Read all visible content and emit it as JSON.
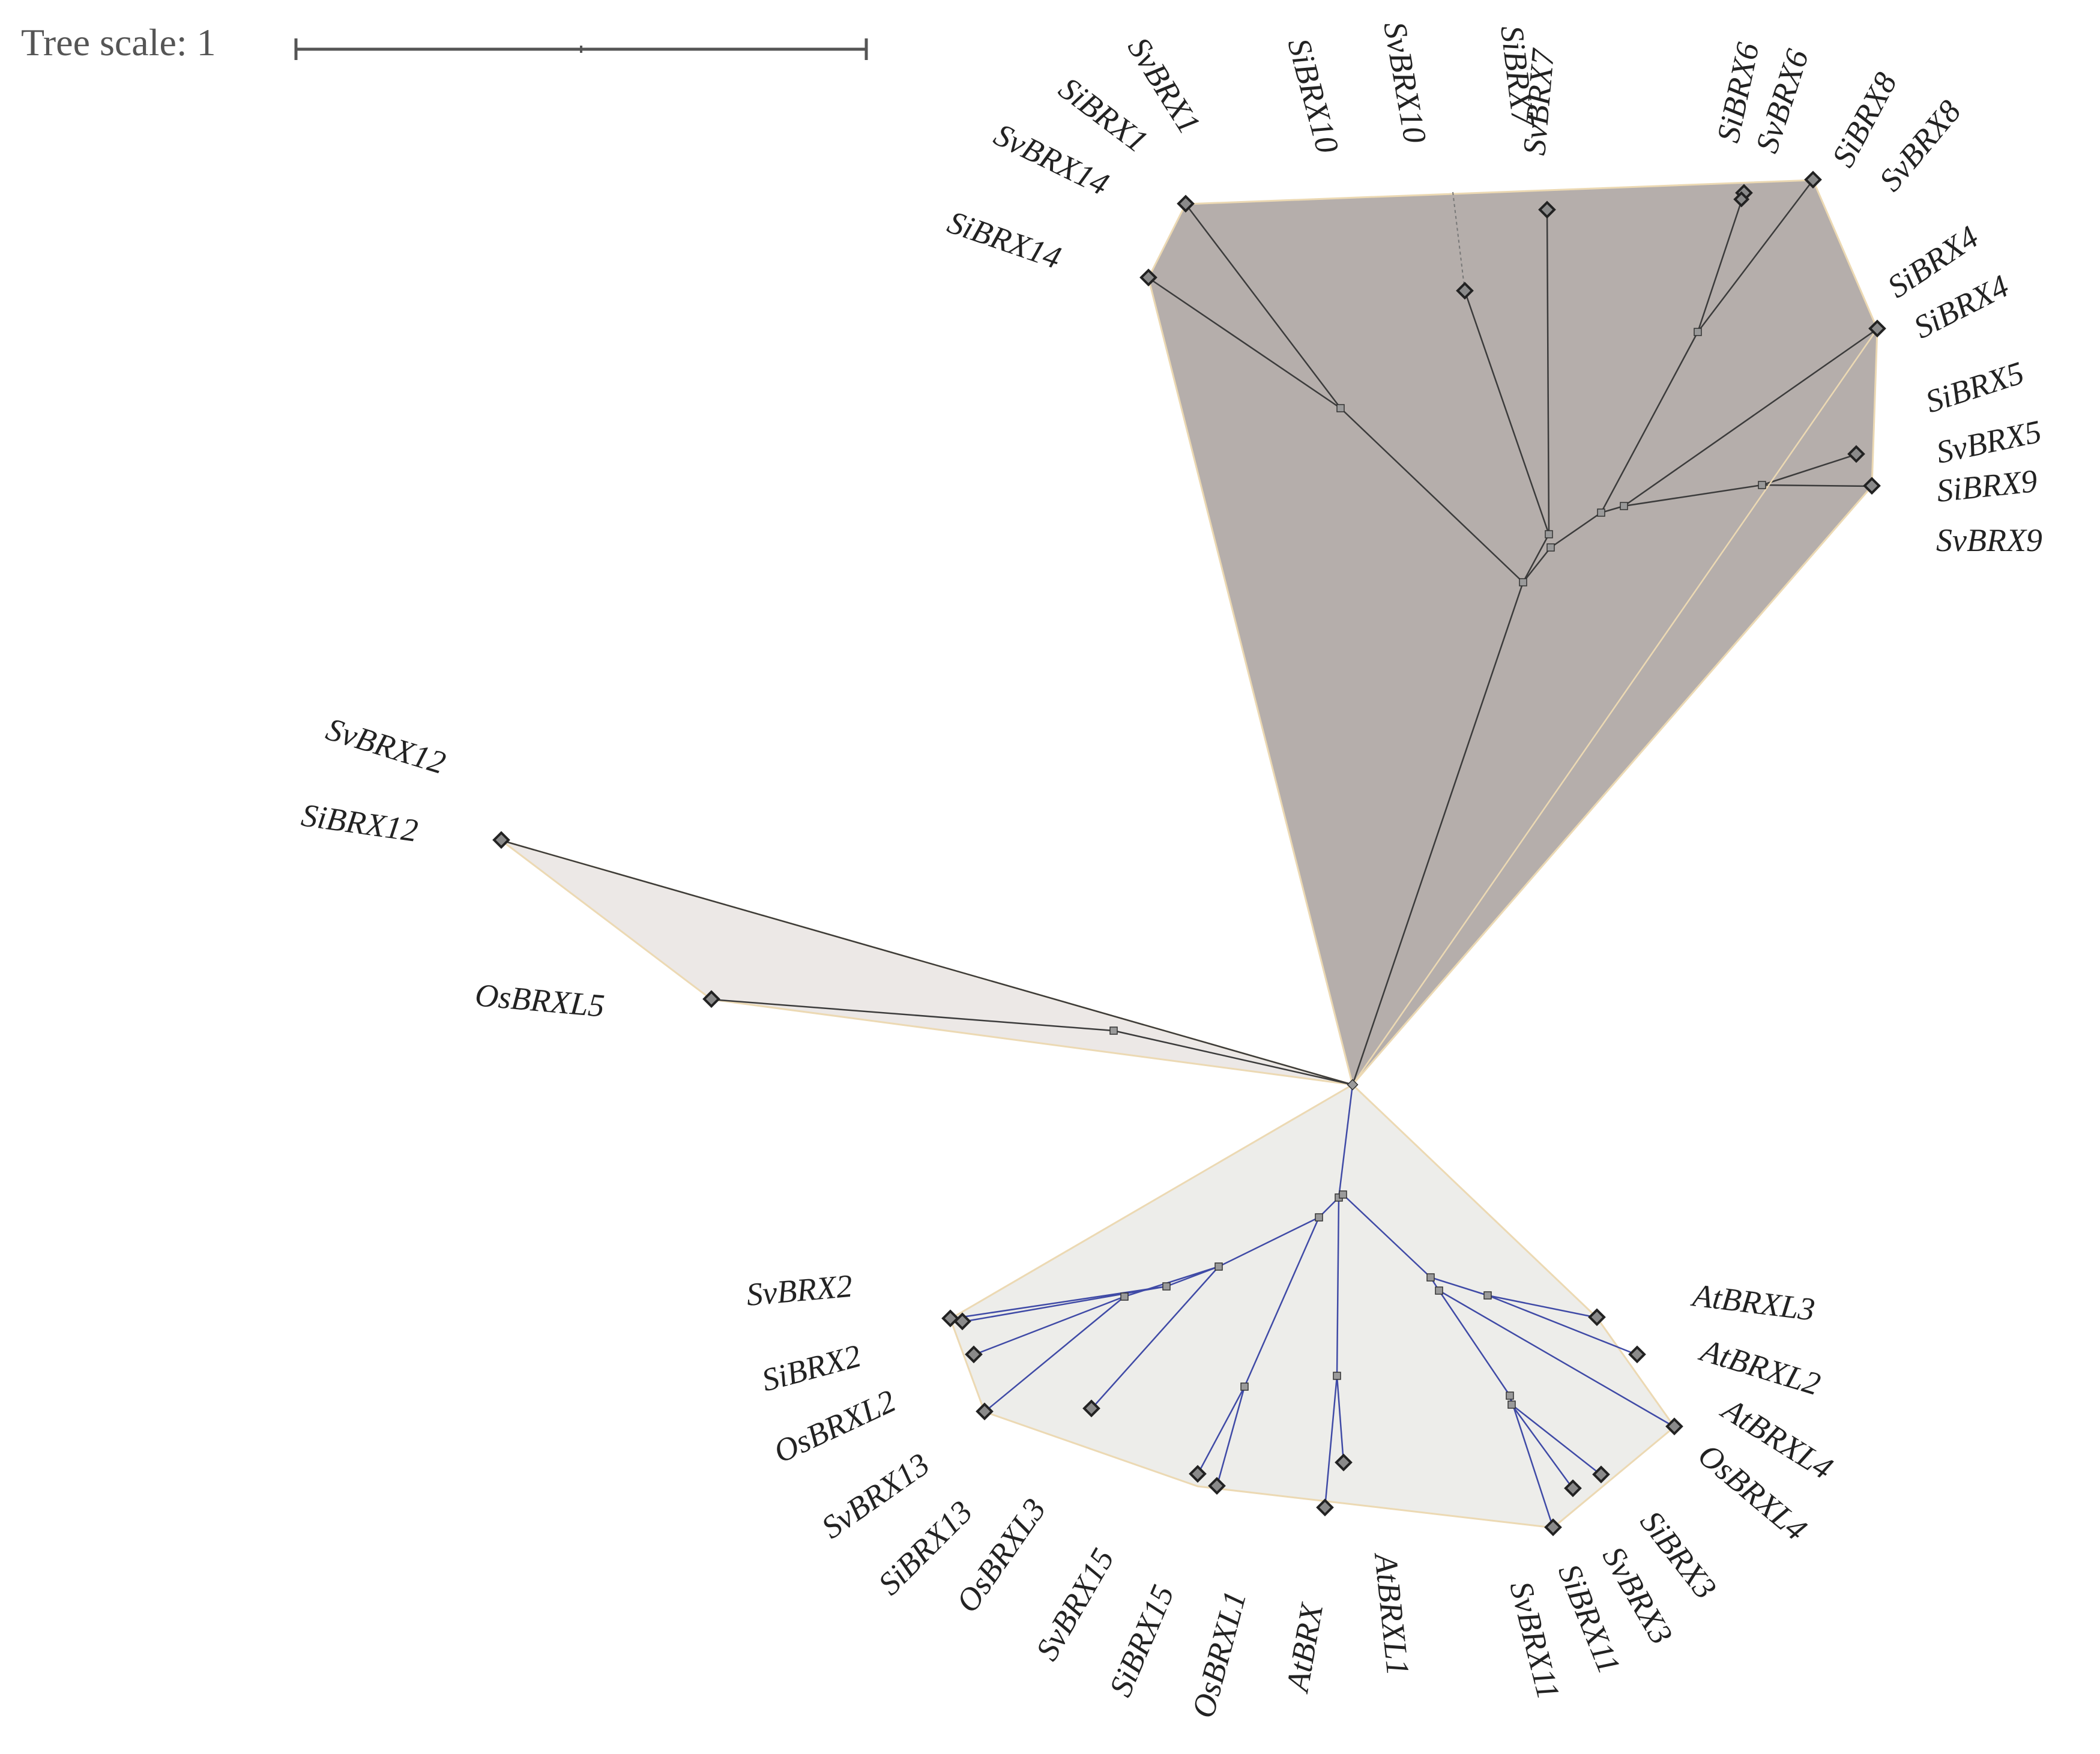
{
  "scale": {
    "label": "Tree scale: 1"
  },
  "colors": {
    "clade_brx_fill": "#b5aeab",
    "clade_brx12_fill": "#ece8e6",
    "clade_brxl_fill": "#ededea",
    "clade_border": "#ecd9b3",
    "branch_dark": "#3b3b3b",
    "branch_blue": "#3f4aa6",
    "label_color": "#222222"
  },
  "clades": [
    {
      "id": "brx",
      "branch_color": "dark",
      "labels": [
        "SvBRX1",
        "SiBRX1",
        "SvBRX14",
        "SiBRX14",
        "SiBRX10",
        "SvBRX10",
        "SiBRX7",
        "SvBRX7",
        "SiBRX6",
        "SvBRX6",
        "SiBRX8",
        "SvBRX8",
        "SiBRX4",
        "SiBRX4",
        "SiBRX5",
        "SvBRX5",
        "SiBRX9",
        "SvBRX9"
      ]
    },
    {
      "id": "brx12",
      "branch_color": "dark",
      "labels": [
        "SvBRX12",
        "SiBRX12",
        "OsBRXL5"
      ]
    },
    {
      "id": "brxl",
      "branch_color": "blue",
      "labels": [
        "SvBRX2",
        "SiBRX2",
        "OsBRXL2",
        "SvBRX13",
        "SiBRX13",
        "OsBRXL3",
        "SvBRX15",
        "SiBRX15",
        "OsBRXL1",
        "AtBRX",
        "AtBRXL1",
        "SvBRX11",
        "SiBRX11",
        "SvBRX3",
        "SiBRX3",
        "OsBRXL4",
        "AtBRXL4",
        "AtBRXL2",
        "AtBRXL3"
      ]
    }
  ]
}
